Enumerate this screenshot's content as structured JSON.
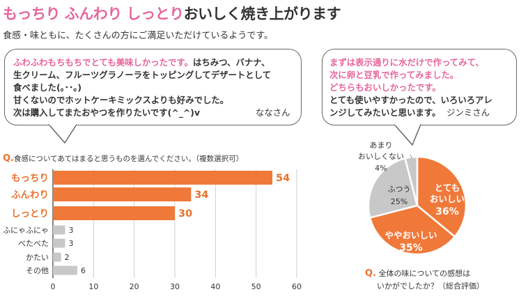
{
  "header": {
    "title_pink": "もっちり ふんわり しっとり",
    "title_dark": "おいしく焼き上がります",
    "subtitle": "食感・味ともに、たくさんの方にご満足いただけているようです。"
  },
  "comment1": {
    "pink_text": "ふわふわもちもちでとても美味しかったです。",
    "line1_rest": "はちみつ、バナナ、",
    "line2": "生クリーム、フルーツグラノーラをトッピングしてデザートとして",
    "line3": "食べました(｡･･｡)",
    "line4": "甘くないのでホットケーキミックスよりも好みでした。",
    "line5": "次は購入してまたおやつを作りたいです(^_^)v",
    "author": "ななさん"
  },
  "comment2": {
    "line1": "まずは表示通りに水だけで作ってみて、",
    "line2": "次に卵と豆乳で作ってみました。",
    "line3": "どちらもおいしかったです。",
    "line4": "とても使いやすかったので、いろいろアレ",
    "line5": "ンジしてみたいと思います。",
    "author": "ジンミさん"
  },
  "colors": {
    "orange": "#f0793a",
    "gray": "#c8c8c8",
    "pink": "#e5669c"
  },
  "chart_data": [
    {
      "type": "bar",
      "orientation": "horizontal",
      "question_mark": "Q.",
      "title": "食感についてあてはまると思うものを選んでください。（複数選択可）",
      "categories": [
        "もっちり",
        "ふんわり",
        "しっとり",
        "ふにゃふにゃ",
        "べたべた",
        "かたい",
        "その他"
      ],
      "values": [
        54,
        34,
        30,
        3,
        3,
        2,
        6
      ],
      "highlight": [
        true,
        true,
        true,
        false,
        false,
        false,
        false
      ],
      "xlim": [
        0,
        60
      ],
      "xticks": [
        "0",
        "10",
        "20",
        "30",
        "40",
        "50",
        "60"
      ],
      "grid": true
    },
    {
      "type": "pie",
      "question_mark": "Q.",
      "title_line1": "全体の味についての感想は",
      "title_line2": "いかがでしたか？（総合評価）",
      "slices": [
        {
          "label_line1": "とても",
          "label_line2": "おいしい",
          "value": 36,
          "value_label": "36%",
          "color": "#f0793a"
        },
        {
          "label_line1": "ややおいしい",
          "label_line2": "",
          "value": 35,
          "value_label": "35%",
          "color": "#f0793a"
        },
        {
          "label_line1": "ふつう",
          "label_line2": "",
          "value": 25,
          "value_label": "25%",
          "color": "#c8c8c8"
        },
        {
          "label_line1": "あまり",
          "label_line2": "おいしくない",
          "value": 4,
          "value_label": "4%",
          "color": "#c8c8c8"
        }
      ]
    }
  ]
}
